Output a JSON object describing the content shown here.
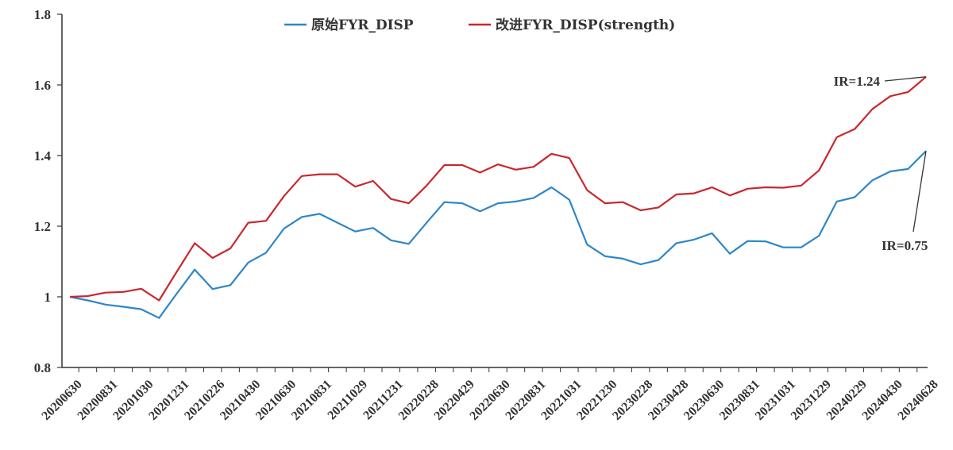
{
  "chart_data": {
    "type": "line",
    "title": "",
    "xlabel": "",
    "ylabel": "",
    "ylim": [
      0.8,
      1.8
    ],
    "yticks": [
      "0.8",
      "1",
      "1.2",
      "1.4",
      "1.6",
      "1.8"
    ],
    "grid": false,
    "legend_position": "top-center",
    "x": [
      "20200630",
      "20200731",
      "20200831",
      "20200930",
      "20201030",
      "20201130",
      "20201231",
      "20210129",
      "20210226",
      "20210331",
      "20210430",
      "20210531",
      "20210630",
      "20210730",
      "20210831",
      "20210930",
      "20211029",
      "20211130",
      "20211231",
      "20220128",
      "20220228",
      "20220331",
      "20220429",
      "20220531",
      "20220630",
      "20220729",
      "20220831",
      "20220930",
      "20221031",
      "20221130",
      "20221230",
      "20230131",
      "20230228",
      "20230331",
      "20230428",
      "20230531",
      "20230630",
      "20230731",
      "20230831",
      "20230928",
      "20231031",
      "20231130",
      "20231229",
      "20240131",
      "20240229",
      "20240329",
      "20240430",
      "20240531",
      "20240628"
    ],
    "xtick_labels": [
      "20200630",
      "20200831",
      "20201030",
      "20201231",
      "20210226",
      "20210430",
      "20210630",
      "20210831",
      "20211029",
      "20211231",
      "20220228",
      "20220429",
      "20220630",
      "20220831",
      "20221031",
      "20221230",
      "20230228",
      "20230428",
      "20230630",
      "20230831",
      "20231031",
      "20231229",
      "20240229",
      "20240430",
      "20240628"
    ],
    "series": [
      {
        "name": "原始FYR_DISP",
        "color": "#2e86c8",
        "values": [
          1.0,
          0.99,
          0.978,
          0.972,
          0.965,
          0.94,
          1.01,
          1.077,
          1.022,
          1.033,
          1.097,
          1.125,
          1.193,
          1.226,
          1.235,
          1.21,
          1.185,
          1.195,
          1.16,
          1.15,
          1.21,
          1.268,
          1.265,
          1.242,
          1.265,
          1.27,
          1.28,
          1.31,
          1.275,
          1.148,
          1.115,
          1.108,
          1.092,
          1.104,
          1.152,
          1.162,
          1.18,
          1.122,
          1.158,
          1.157,
          1.14,
          1.14,
          1.173,
          1.27,
          1.282,
          1.33,
          1.355,
          1.362,
          1.413
        ]
      },
      {
        "name": "改进FYR_DISP(strength)",
        "color": "#c8282e",
        "values": [
          1.0,
          1.002,
          1.012,
          1.014,
          1.023,
          0.99,
          1.072,
          1.152,
          1.11,
          1.137,
          1.21,
          1.215,
          1.285,
          1.342,
          1.347,
          1.347,
          1.312,
          1.328,
          1.277,
          1.265,
          1.315,
          1.373,
          1.373,
          1.352,
          1.375,
          1.36,
          1.368,
          1.405,
          1.393,
          1.302,
          1.265,
          1.268,
          1.245,
          1.253,
          1.29,
          1.293,
          1.31,
          1.287,
          1.306,
          1.31,
          1.309,
          1.315,
          1.358,
          1.452,
          1.475,
          1.532,
          1.568,
          1.58,
          1.623
        ]
      }
    ],
    "annotations": [
      {
        "text": "IR=1.24",
        "series_index": 1,
        "point_index": 48
      },
      {
        "text": "IR=0.75",
        "series_index": 0,
        "point_index": 48
      }
    ]
  }
}
